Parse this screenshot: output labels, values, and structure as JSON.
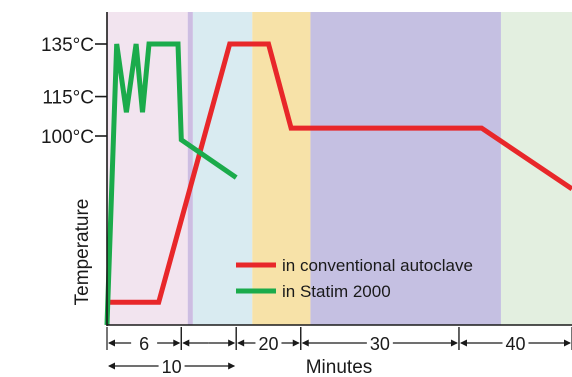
{
  "chart_data": {
    "type": "line",
    "title": "",
    "xlabel": "Minutes",
    "ylabel": "Temperature",
    "y_tick_labels": [
      {
        "value": 135,
        "label": "135°C"
      },
      {
        "value": 115,
        "label": "115°C"
      },
      {
        "value": 100,
        "label": "100°C"
      }
    ],
    "phases": [
      {
        "start": 0,
        "end": 12.5,
        "color": "#f2e4ef"
      },
      {
        "start": 12.5,
        "end": 13.3,
        "color": "#cdbde2"
      },
      {
        "start": 13.3,
        "end": 22.5,
        "color": "#d9ebf1"
      },
      {
        "start": 22.5,
        "end": 31.5,
        "color": "#f7e2a8"
      },
      {
        "start": 31.5,
        "end": 61,
        "color": "#c5c0e2"
      },
      {
        "start": 61,
        "end": 72,
        "color": "#e3efe0"
      }
    ],
    "series": [
      {
        "name": "in conventional autoclave",
        "color": "#e8272a",
        "points": [
          [
            0,
            12
          ],
          [
            8,
            12
          ],
          [
            19,
            135
          ],
          [
            25,
            135
          ],
          [
            28.5,
            103
          ],
          [
            58,
            103
          ],
          [
            72,
            72
          ]
        ]
      },
      {
        "name": "in Statim 2000",
        "color": "#1bab4b",
        "points": [
          [
            0,
            0
          ],
          [
            1.5,
            135
          ],
          [
            3,
            109
          ],
          [
            4.5,
            135
          ],
          [
            5.5,
            109
          ],
          [
            6.5,
            135
          ],
          [
            11,
            135
          ],
          [
            11.5,
            98
          ],
          [
            20,
            78
          ]
        ]
      }
    ],
    "duration_markers": [
      {
        "label": "6",
        "start": 0,
        "end": 11.5,
        "row": 1
      },
      {
        "label": "",
        "start": 11.5,
        "end": 20,
        "row": 1
      },
      {
        "label": "20",
        "start": 20,
        "end": 30,
        "row": 1
      },
      {
        "label": "30",
        "start": 30,
        "end": 54.5,
        "row": 1
      },
      {
        "label": "40",
        "start": 54.5,
        "end": 72,
        "row": 1
      },
      {
        "label": "10",
        "start": 0,
        "end": 20,
        "row": 2
      }
    ],
    "legend_position": "center-right",
    "grid": false
  }
}
